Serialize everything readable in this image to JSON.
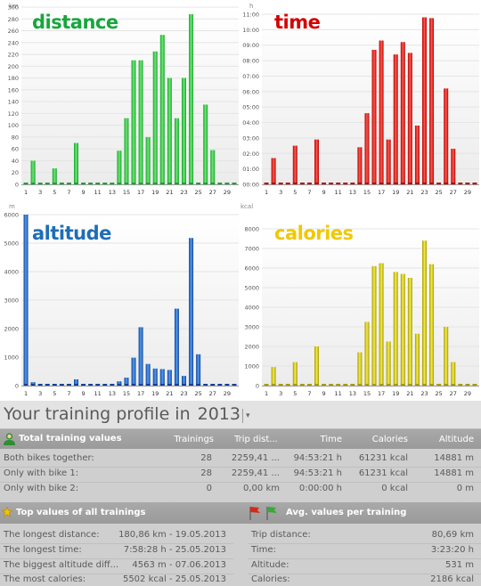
{
  "colors": {
    "distance": "#17a63c",
    "time": "#d40000",
    "altitude": "#1f6db7",
    "calories": "#f0c800"
  },
  "charts": {
    "distance": {
      "title": "distance",
      "unit": "km",
      "yticks": [
        "0",
        "20",
        "40",
        "60",
        "80",
        "100",
        "120",
        "140",
        "160",
        "180",
        "200",
        "220",
        "240",
        "260",
        "280",
        "300"
      ]
    },
    "time": {
      "title": "time",
      "unit": "h",
      "yticks": [
        "00:00",
        "01:00",
        "02:00",
        "03:00",
        "04:00",
        "05:00",
        "06:00",
        "07:00",
        "08:00",
        "09:00",
        "10:00",
        "11:00"
      ]
    },
    "altitude": {
      "title": "altitude",
      "unit": "m",
      "yticks": [
        "0",
        "1000",
        "2000",
        "3000",
        "4000",
        "5000",
        "6000"
      ]
    },
    "calories": {
      "title": "calories",
      "unit": "kcal",
      "yticks": [
        "0",
        "1000",
        "2000",
        "3000",
        "4000",
        "5000",
        "6000",
        "7000",
        "8000"
      ]
    },
    "xticks": [
      "1",
      "3",
      "5",
      "7",
      "9",
      "11",
      "13",
      "15",
      "17",
      "19",
      "21",
      "23",
      "25",
      "27",
      "29"
    ]
  },
  "chart_data": [
    {
      "type": "bar",
      "title": "distance",
      "ylabel": "km",
      "categories": [
        "1",
        "2",
        "3",
        "4",
        "5",
        "6",
        "7",
        "8",
        "9",
        "10",
        "11",
        "12",
        "13",
        "14",
        "15",
        "16",
        "17",
        "18",
        "19",
        "20",
        "21",
        "22",
        "23",
        "24",
        "25",
        "26",
        "27",
        "28",
        "29",
        "30"
      ],
      "values": [
        0,
        40,
        0,
        0,
        27,
        0,
        0,
        70,
        0,
        0,
        0,
        0,
        0,
        57,
        112,
        210,
        210,
        80,
        225,
        253,
        180,
        112,
        180,
        288,
        0,
        135,
        58,
        0,
        0,
        0
      ],
      "ylim": [
        0,
        300
      ],
      "grid": true
    },
    {
      "type": "bar",
      "title": "time",
      "ylabel": "h",
      "categories": [
        "1",
        "2",
        "3",
        "4",
        "5",
        "6",
        "7",
        "8",
        "9",
        "10",
        "11",
        "12",
        "13",
        "14",
        "15",
        "16",
        "17",
        "18",
        "19",
        "20",
        "21",
        "22",
        "23",
        "24",
        "25",
        "26",
        "27",
        "28",
        "29",
        "30"
      ],
      "values": [
        0,
        1.7,
        0,
        0,
        2.5,
        0,
        0,
        2.9,
        0,
        0,
        0,
        0,
        0,
        2.4,
        4.6,
        8.7,
        9.3,
        2.9,
        8.4,
        9.2,
        8.5,
        3.8,
        10.8,
        10.75,
        0,
        6.2,
        2.3,
        0,
        0,
        0
      ],
      "ylim": [
        0,
        11
      ],
      "grid": true
    },
    {
      "type": "bar",
      "title": "altitude",
      "ylabel": "m",
      "categories": [
        "1",
        "2",
        "3",
        "4",
        "5",
        "6",
        "7",
        "8",
        "9",
        "10",
        "11",
        "12",
        "13",
        "14",
        "15",
        "16",
        "17",
        "18",
        "19",
        "20",
        "21",
        "22",
        "23",
        "24",
        "25",
        "26",
        "27",
        "28",
        "29",
        "30"
      ],
      "values": [
        6000,
        120,
        0,
        0,
        0,
        0,
        0,
        220,
        0,
        0,
        0,
        0,
        0,
        150,
        280,
        980,
        2050,
        760,
        600,
        580,
        550,
        2700,
        340,
        5180,
        1100,
        0,
        0,
        0,
        0,
        0
      ],
      "ylim": [
        0,
        6000
      ],
      "grid": true
    },
    {
      "type": "bar",
      "title": "calories",
      "ylabel": "kcal",
      "categories": [
        "1",
        "2",
        "3",
        "4",
        "5",
        "6",
        "7",
        "8",
        "9",
        "10",
        "11",
        "12",
        "13",
        "14",
        "15",
        "16",
        "17",
        "18",
        "19",
        "20",
        "21",
        "22",
        "23",
        "24",
        "25",
        "26",
        "27",
        "28",
        "29",
        "30"
      ],
      "values": [
        0,
        950,
        0,
        0,
        1200,
        0,
        0,
        2000,
        0,
        0,
        0,
        0,
        0,
        1700,
        3250,
        6100,
        6250,
        2250,
        5800,
        5700,
        5500,
        2650,
        7400,
        6200,
        0,
        3000,
        1200,
        0,
        0,
        0
      ],
      "ylim": [
        0,
        8000
      ],
      "grid": true
    }
  ],
  "profile": {
    "title": "Your training profile in",
    "year": "2013",
    "totals": {
      "title": "Total training values",
      "columns": [
        "Trainings",
        "Trip dist...",
        "Time",
        "Calories",
        "Altitude"
      ],
      "rows": [
        {
          "label": "Both bikes together:",
          "trainings": "28",
          "dist": "2259,41 ...",
          "time": "94:53:21 h",
          "calories": "61231 kcal",
          "altitude": "14881 m"
        },
        {
          "label": "Only with bike 1:",
          "trainings": "28",
          "dist": "2259,41 ...",
          "time": "94:53:21 h",
          "calories": "61231 kcal",
          "altitude": "14881 m"
        },
        {
          "label": "Only with bike 2:",
          "trainings": "0",
          "dist": "0,00 km",
          "time": "0:00:00 h",
          "calories": "0 kcal",
          "altitude": "0 m"
        }
      ]
    },
    "top": {
      "title": "Top values of all trainings",
      "rows": [
        {
          "label": "The longest distance:",
          "value": "180,86 km - 19.05.2013"
        },
        {
          "label": "The longest time:",
          "value": "7:58:28 h - 25.05.2013"
        },
        {
          "label": "The biggest altitude diff...",
          "value": "4563 m - 07.06.2013"
        },
        {
          "label": "The most calories:",
          "value": "5502 kcal - 25.05.2013"
        }
      ]
    },
    "avg": {
      "title": "Avg. values per training",
      "rows": [
        {
          "label": "Trip distance:",
          "value": "80,69 km"
        },
        {
          "label": "Time:",
          "value": "3:23:20 h"
        },
        {
          "label": "Altitude:",
          "value": "531 m"
        },
        {
          "label": "Calories:",
          "value": "2186 kcal"
        }
      ]
    }
  }
}
